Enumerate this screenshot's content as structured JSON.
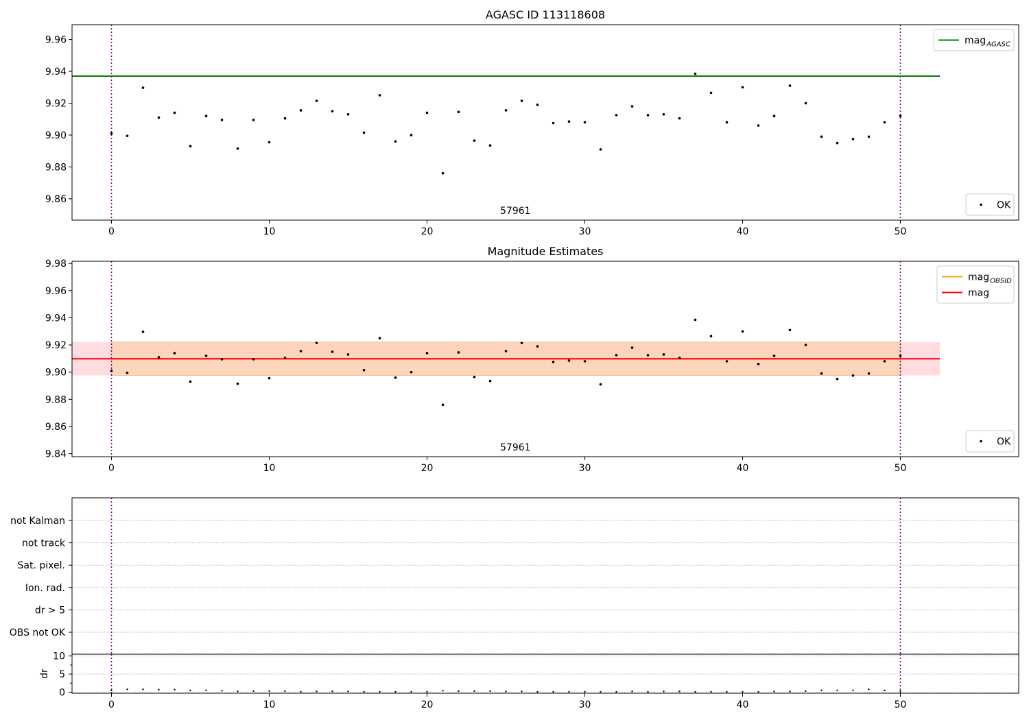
{
  "chart_data": [
    {
      "type": "scatter",
      "title": "AGASC ID 113118608",
      "annotation": "57961",
      "xlim": [
        -2.5,
        57.5
      ],
      "ylim": [
        9.8466,
        9.9693
      ],
      "xticks": [
        0,
        10,
        20,
        30,
        40,
        50
      ],
      "yticks": [
        9.86,
        9.88,
        9.9,
        9.92,
        9.94,
        9.96
      ],
      "grid": false,
      "vlines": [
        0,
        50
      ],
      "ref_lines": [
        {
          "name": "mag_AGASC",
          "label_main": "mag",
          "label_sub": "AGASC",
          "y": 9.937,
          "x_range": [
            -2.5,
            52.5
          ],
          "color": "#008000"
        }
      ],
      "legends": [
        {
          "placement": "upper-right",
          "entries": [
            {
              "label_main": "mag",
              "label_sub": "AGASC",
              "kind": "line",
              "color": "#008000"
            }
          ]
        },
        {
          "placement": "lower-right",
          "entries": [
            {
              "label_main": "OK",
              "label_sub": "",
              "kind": "point",
              "color": "#000000"
            }
          ]
        }
      ],
      "series": [
        {
          "name": "OK",
          "x": [
            0,
            1,
            2,
            3,
            4,
            5,
            6,
            7,
            8,
            9,
            10,
            11,
            12,
            13,
            14,
            15,
            16,
            17,
            18,
            19,
            20,
            21,
            22,
            23,
            24,
            25,
            26,
            27,
            28,
            29,
            30,
            31,
            32,
            33,
            34,
            35,
            36,
            37,
            38,
            39,
            40,
            41,
            42,
            43,
            44,
            45,
            46,
            47,
            48,
            49,
            50
          ],
          "values": [
            9.901,
            9.8995,
            9.9297,
            9.911,
            9.914,
            9.893,
            9.912,
            9.9095,
            9.8915,
            9.9095,
            9.8955,
            9.9105,
            9.9155,
            9.9215,
            9.915,
            9.913,
            9.9015,
            9.925,
            9.896,
            9.9,
            9.914,
            9.876,
            9.9145,
            9.8965,
            9.8935,
            9.9155,
            9.9215,
            9.919,
            9.9075,
            9.9085,
            9.908,
            9.891,
            9.9125,
            9.918,
            9.9125,
            9.913,
            9.9105,
            9.9385,
            9.9265,
            9.908,
            9.93,
            9.906,
            9.912,
            9.931,
            9.92,
            9.899,
            9.895,
            9.8975,
            9.899,
            9.908,
            9.912
          ]
        }
      ]
    },
    {
      "type": "scatter",
      "title": "Magnitude Estimates",
      "annotation": "57961",
      "xlim": [
        -2.5,
        57.5
      ],
      "ylim": [
        9.8378,
        9.9816
      ],
      "xticks": [
        0,
        10,
        20,
        30,
        40,
        50
      ],
      "yticks": [
        9.84,
        9.86,
        9.88,
        9.9,
        9.92,
        9.94,
        9.96,
        9.98
      ],
      "grid": false,
      "vlines": [
        0,
        50
      ],
      "bands": [
        {
          "name": "mag",
          "y_range": [
            9.8976,
            9.9221
          ],
          "x_range": [
            -2.5,
            52.5
          ],
          "color": "#ffdce0"
        },
        {
          "name": "mag_OBSID",
          "y_range": [
            9.8976,
            9.9221
          ],
          "x_range": [
            0,
            50
          ],
          "color": "#fdd5bf"
        }
      ],
      "ref_lines": [
        {
          "name": "mag_OBSID",
          "label_main": "mag",
          "label_sub": "OBSID",
          "y": 9.9098,
          "x_range": [
            0,
            50
          ],
          "color": "#ffa500"
        },
        {
          "name": "mag",
          "label_main": "mag",
          "label_sub": "",
          "y": 9.9098,
          "x_range": [
            -2.5,
            52.5
          ],
          "color": "#ff0000"
        }
      ],
      "legends": [
        {
          "placement": "upper-right",
          "entries": [
            {
              "label_main": "mag",
              "label_sub": "OBSID",
              "kind": "line",
              "color": "#ffa500"
            },
            {
              "label_main": "mag",
              "label_sub": "",
              "kind": "line",
              "color": "#ff0000"
            }
          ]
        },
        {
          "placement": "lower-right",
          "entries": [
            {
              "label_main": "OK",
              "label_sub": "",
              "kind": "point",
              "color": "#000000"
            }
          ]
        }
      ],
      "series": [
        {
          "name": "OK",
          "x": [
            0,
            1,
            2,
            3,
            4,
            5,
            6,
            7,
            8,
            9,
            10,
            11,
            12,
            13,
            14,
            15,
            16,
            17,
            18,
            19,
            20,
            21,
            22,
            23,
            24,
            25,
            26,
            27,
            28,
            29,
            30,
            31,
            32,
            33,
            34,
            35,
            36,
            37,
            38,
            39,
            40,
            41,
            42,
            43,
            44,
            45,
            46,
            47,
            48,
            49,
            50
          ],
          "values": [
            9.901,
            9.8995,
            9.9297,
            9.911,
            9.914,
            9.893,
            9.912,
            9.9095,
            9.8915,
            9.9095,
            9.8955,
            9.9105,
            9.9155,
            9.9215,
            9.915,
            9.913,
            9.9015,
            9.925,
            9.896,
            9.9,
            9.914,
            9.876,
            9.9145,
            9.8965,
            9.8935,
            9.9155,
            9.9215,
            9.919,
            9.9075,
            9.9085,
            9.908,
            9.891,
            9.9125,
            9.918,
            9.9125,
            9.913,
            9.9105,
            9.9385,
            9.9265,
            9.908,
            9.93,
            9.906,
            9.912,
            9.931,
            9.92,
            9.899,
            9.895,
            9.8975,
            9.899,
            9.908,
            9.912
          ]
        }
      ]
    },
    {
      "type": "scatter",
      "title": "",
      "xlim": [
        -2.5,
        57.5
      ],
      "categories": [
        "OBS not OK",
        "dr > 5",
        "Ion. rad.",
        "Sat. pixel.",
        "not track",
        "not Kalman"
      ],
      "grid": true,
      "vlines": [
        0,
        50
      ],
      "series": []
    },
    {
      "type": "scatter",
      "title": "",
      "ylabel": "dr",
      "xlim": [
        -2.5,
        57.5
      ],
      "ylim": [
        -0.3,
        10.5
      ],
      "xticks": [
        0,
        10,
        20,
        30,
        40,
        50
      ],
      "yticks": [
        0,
        5,
        10
      ],
      "grid": true,
      "vlines": [
        0,
        50
      ],
      "series": [
        {
          "name": "dr",
          "x": [
            0,
            1,
            2,
            3,
            4,
            5,
            6,
            7,
            8,
            9,
            10,
            11,
            12,
            13,
            14,
            15,
            16,
            17,
            18,
            19,
            20,
            21,
            22,
            23,
            24,
            25,
            26,
            27,
            28,
            29,
            30,
            31,
            32,
            33,
            34,
            35,
            36,
            37,
            38,
            39,
            40,
            41,
            42,
            43,
            44,
            45,
            46,
            47,
            48,
            49,
            50
          ],
          "values": [
            0.5,
            0.8,
            0.8,
            0.7,
            0.7,
            0.5,
            0.5,
            0.4,
            0.2,
            0.3,
            0.3,
            0.3,
            0.1,
            0.2,
            0.2,
            0.2,
            0.1,
            0.1,
            0.1,
            0.1,
            0.1,
            0.4,
            0.3,
            0.3,
            0.3,
            0.2,
            0.2,
            0.1,
            0.1,
            0.1,
            0.1,
            0.1,
            0.1,
            0.2,
            0.1,
            0.2,
            0.2,
            0.1,
            0.1,
            0.1,
            0.1,
            0.1,
            0.2,
            0.2,
            0.3,
            0.5,
            0.5,
            0.5,
            0.8,
            0.5,
            0.3
          ]
        }
      ]
    }
  ]
}
